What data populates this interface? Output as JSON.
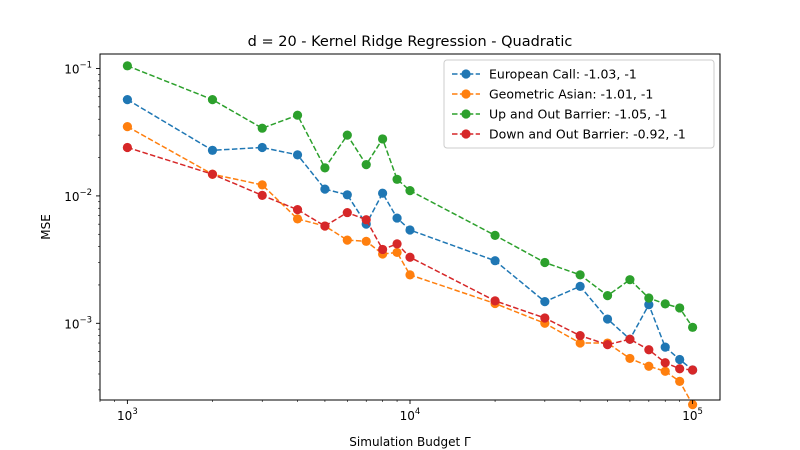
{
  "chart_data": {
    "type": "line",
    "title": "d = 20 - Kernel Ridge Regression - Quadratic",
    "xlabel": "Simulation Budget Γ",
    "ylabel": "MSE",
    "xscale": "log",
    "yscale": "log",
    "xlim": [
      800,
      125000
    ],
    "ylim": [
      0.00025,
      0.13
    ],
    "x_ticks": [
      {
        "value": 1000,
        "base": "10",
        "exp": "3"
      },
      {
        "value": 10000,
        "base": "10",
        "exp": "4"
      },
      {
        "value": 100000,
        "base": "10",
        "exp": "5"
      }
    ],
    "y_ticks": [
      {
        "value": 0.001,
        "base": "10",
        "exp": "−3"
      },
      {
        "value": 0.01,
        "base": "10",
        "exp": "−2"
      },
      {
        "value": 0.1,
        "base": "10",
        "exp": "−1"
      }
    ],
    "grid": false,
    "legend_position": "top-right",
    "x": [
      1000,
      2000,
      3000,
      4000,
      5000,
      6000,
      7000,
      8000,
      9000,
      10000,
      20000,
      30000,
      40000,
      50000,
      60000,
      70000,
      80000,
      90000,
      100000
    ],
    "series": [
      {
        "name": "European Call: -1.03, -1",
        "color": "#1f77b4",
        "values": [
          0.057,
          0.0228,
          0.024,
          0.021,
          0.0113,
          0.0102,
          0.006,
          0.0105,
          0.0067,
          0.0054,
          0.0031,
          0.00148,
          0.00195,
          0.00108,
          0.00075,
          0.0014,
          0.00065,
          0.00052,
          0.00043
        ]
      },
      {
        "name": "Geometric Asian: -1.01, -1",
        "color": "#ff7f0e",
        "values": [
          0.035,
          0.0148,
          0.0122,
          0.0066,
          0.0058,
          0.0045,
          0.0044,
          0.0035,
          0.0036,
          0.0024,
          0.00143,
          0.001,
          0.0007,
          0.0007,
          0.00053,
          0.00046,
          0.00042,
          0.00035,
          0.00023
        ]
      },
      {
        "name": "Up and Out Barrier: -1.05, -1",
        "color": "#2ca02c",
        "values": [
          0.105,
          0.057,
          0.034,
          0.043,
          0.0166,
          0.03,
          0.0176,
          0.028,
          0.0135,
          0.011,
          0.0049,
          0.003,
          0.0024,
          0.00165,
          0.0022,
          0.00158,
          0.00142,
          0.00132,
          0.00093
        ]
      },
      {
        "name": "Down and Out Barrier: -0.92, -1",
        "color": "#d62728",
        "values": [
          0.024,
          0.0148,
          0.0101,
          0.0078,
          0.0058,
          0.0074,
          0.0065,
          0.0038,
          0.0042,
          0.0033,
          0.0015,
          0.0011,
          0.0008,
          0.00068,
          0.00075,
          0.00062,
          0.00049,
          0.00044,
          0.00043
        ]
      }
    ]
  }
}
